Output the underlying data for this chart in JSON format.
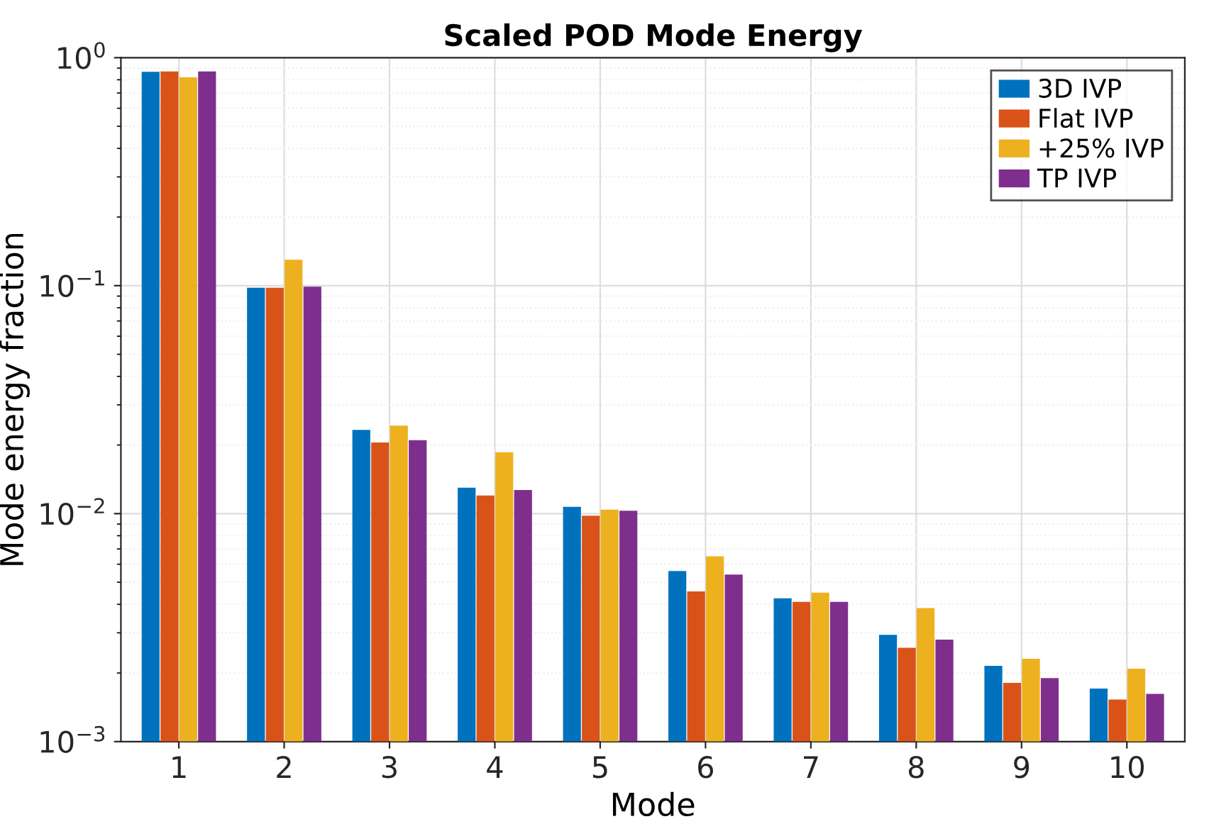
{
  "chart_data": {
    "type": "bar",
    "title": "Scaled POD Mode Energy",
    "xlabel": "Mode",
    "ylabel": "Mode energy fraction",
    "categories": [
      "1",
      "2",
      "3",
      "4",
      "5",
      "6",
      "7",
      "8",
      "9",
      "10"
    ],
    "series": [
      {
        "name": "3D IVP",
        "color": "#0072bd",
        "values": [
          0.867,
          0.098,
          0.0233,
          0.013,
          0.0107,
          0.0056,
          0.00425,
          0.00294,
          0.00215,
          0.00171
        ]
      },
      {
        "name": "Flat IVP",
        "color": "#d95319",
        "values": [
          0.87,
          0.098,
          0.0205,
          0.012,
          0.0098,
          0.00456,
          0.0041,
          0.00258,
          0.00181,
          0.00153
        ]
      },
      {
        "name": "+25% IVP",
        "color": "#edb120",
        "values": [
          0.82,
          0.13,
          0.0243,
          0.0186,
          0.0104,
          0.0065,
          0.0045,
          0.00385,
          0.00231,
          0.00209
        ]
      },
      {
        "name": "TP IVP",
        "color": "#7e2f8e",
        "values": [
          0.87,
          0.099,
          0.021,
          0.0127,
          0.0103,
          0.0054,
          0.0041,
          0.0028,
          0.0019,
          0.00162
        ]
      }
    ],
    "log": "y",
    "ylim": [
      0.001,
      1
    ],
    "yticks": [
      {
        "value": 0.001,
        "label": "10$^{−3}$"
      },
      {
        "value": 0.01,
        "label": "10$^{−2}$"
      },
      {
        "value": 0.1,
        "label": "10$^{−1}$"
      },
      {
        "value": 1,
        "label": "10$^{0}$"
      }
    ],
    "grid": true,
    "legend": "top right"
  }
}
